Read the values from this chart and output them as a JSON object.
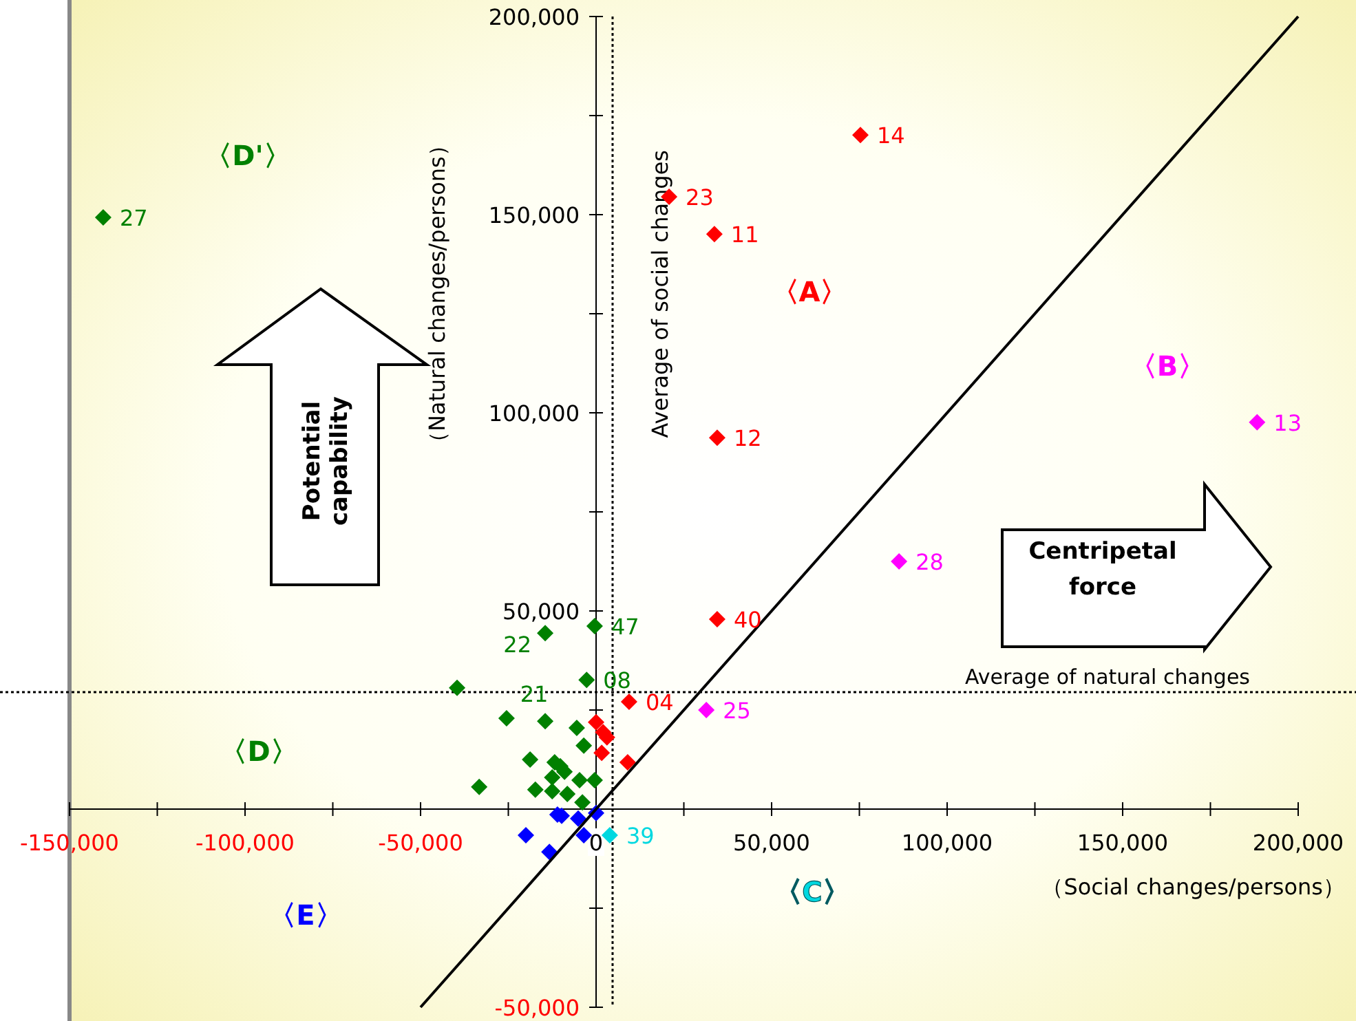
{
  "chart_data": {
    "type": "scatter",
    "xlabel": "（Social changes/persons）",
    "ylabel": "（Natural changes/persons）",
    "marker": "diamond",
    "xlim": [
      -150000,
      200000
    ],
    "ylim": [
      -50000,
      200000
    ],
    "xticks": [
      {
        "value": -150000,
        "label": "-150,000"
      },
      {
        "value": -125000,
        "label": null
      },
      {
        "value": -100000,
        "label": "-100,000"
      },
      {
        "value": -75000,
        "label": null
      },
      {
        "value": -50000,
        "label": "-50,000"
      },
      {
        "value": -25000,
        "label": null
      },
      {
        "value": 0,
        "label": "0"
      },
      {
        "value": 25000,
        "label": null
      },
      {
        "value": 50000,
        "label": "50,000"
      },
      {
        "value": 75000,
        "label": null
      },
      {
        "value": 100000,
        "label": "100,000"
      },
      {
        "value": 125000,
        "label": null
      },
      {
        "value": 150000,
        "label": "150,000"
      },
      {
        "value": 175000,
        "label": null
      },
      {
        "value": 200000,
        "label": "200,000"
      }
    ],
    "yticks": [
      {
        "value": -50000,
        "label": "-50,000"
      },
      {
        "value": -25000,
        "label": null
      },
      {
        "value": 0,
        "label": null
      },
      {
        "value": 25000,
        "label": null
      },
      {
        "value": 50000,
        "label": "50,000"
      },
      {
        "value": 75000,
        "label": null
      },
      {
        "value": 100000,
        "label": "100,000"
      },
      {
        "value": 125000,
        "label": null
      },
      {
        "value": 150000,
        "label": "150,000"
      },
      {
        "value": 175000,
        "label": null
      },
      {
        "value": 200000,
        "label": "200,000"
      }
    ],
    "series": [
      {
        "color": "#ff0000",
        "x": [
          75300,
          20800,
          33700,
          34500,
          34500,
          9400,
          0,
          2000,
          3100,
          1600,
          9000
        ],
        "values": [
          170100,
          154500,
          145100,
          93700,
          47900,
          27100,
          21900,
          19400,
          18100,
          14200,
          11800
        ]
      },
      {
        "color": "#ff00ff",
        "x": [
          188300,
          86300,
          31400
        ],
        "values": [
          97600,
          62500,
          25000
        ]
      },
      {
        "color": "#00d8e0",
        "x": [
          3900
        ],
        "values": [
          -6600
        ]
      },
      {
        "color": "#008000",
        "x": [
          -14500,
          -400,
          -2700,
          -39600,
          -25500,
          -14500,
          -5500,
          -3500,
          -18800,
          -11800,
          -10200,
          -9000,
          -12500,
          -4700,
          -400,
          -33300,
          -17300,
          -12500,
          -8200,
          -3900
        ],
        "values": [
          44400,
          46200,
          32600,
          30600,
          22900,
          22200,
          20500,
          16000,
          12500,
          11800,
          10800,
          9400,
          8000,
          7300,
          7300,
          5600,
          4900,
          4500,
          3800,
          1700
        ]
      },
      {
        "color": "#008000",
        "x": [
          -140400
        ],
        "values": [
          149300
        ]
      },
      {
        "color": "#0000ff",
        "x": [
          -11000,
          -9800,
          -5100,
          0,
          -20000,
          -3500,
          -13300
        ],
        "values": [
          -1400,
          -1700,
          -2400,
          -1000,
          -6600,
          -6600,
          -10800
        ]
      },
      {
        "type": "line",
        "marker": "none",
        "color": "#000000",
        "x": [
          -50000,
          200000
        ],
        "values": [
          -50000,
          200000
        ]
      }
    ],
    "ref_lines": [
      {
        "axis": "x",
        "value": 4700,
        "label": "Average of social changes",
        "line_style": "dotted"
      },
      {
        "axis": "y",
        "value": 29500,
        "label": "Average of natural changes",
        "line_style": "dotted"
      }
    ],
    "annotations": [
      "〈A〉",
      "〈B〉",
      "〈C〉",
      "〈D〉",
      "〈D'〉",
      "〈E〉",
      {
        "text": "14",
        "x": 75300,
        "y": 170100
      },
      {
        "text": "23",
        "x": 20800,
        "y": 154500
      },
      {
        "text": "11",
        "x": 33700,
        "y": 145100
      },
      {
        "text": "12",
        "x": 34500,
        "y": 93700
      },
      {
        "text": "40",
        "x": 34500,
        "y": 47900
      },
      {
        "text": "04",
        "x": 9400,
        "y": 27100
      },
      {
        "text": "13",
        "x": 188300,
        "y": 97600
      },
      {
        "text": "28",
        "x": 86300,
        "y": 62500
      },
      {
        "text": "25",
        "x": 31400,
        "y": 25000
      },
      {
        "text": "39",
        "x": 3900,
        "y": -6600
      },
      {
        "text": "27",
        "x": -140400,
        "y": 149300
      },
      {
        "text": "22",
        "x": -14500,
        "y": 44400
      },
      {
        "text": "47",
        "x": -400,
        "y": 46200
      },
      {
        "text": "08",
        "x": -2700,
        "y": 32600
      },
      {
        "text": "21",
        "x": -14500,
        "y": 22200
      },
      "Potential capability",
      "Centripetal force"
    ]
  }
}
